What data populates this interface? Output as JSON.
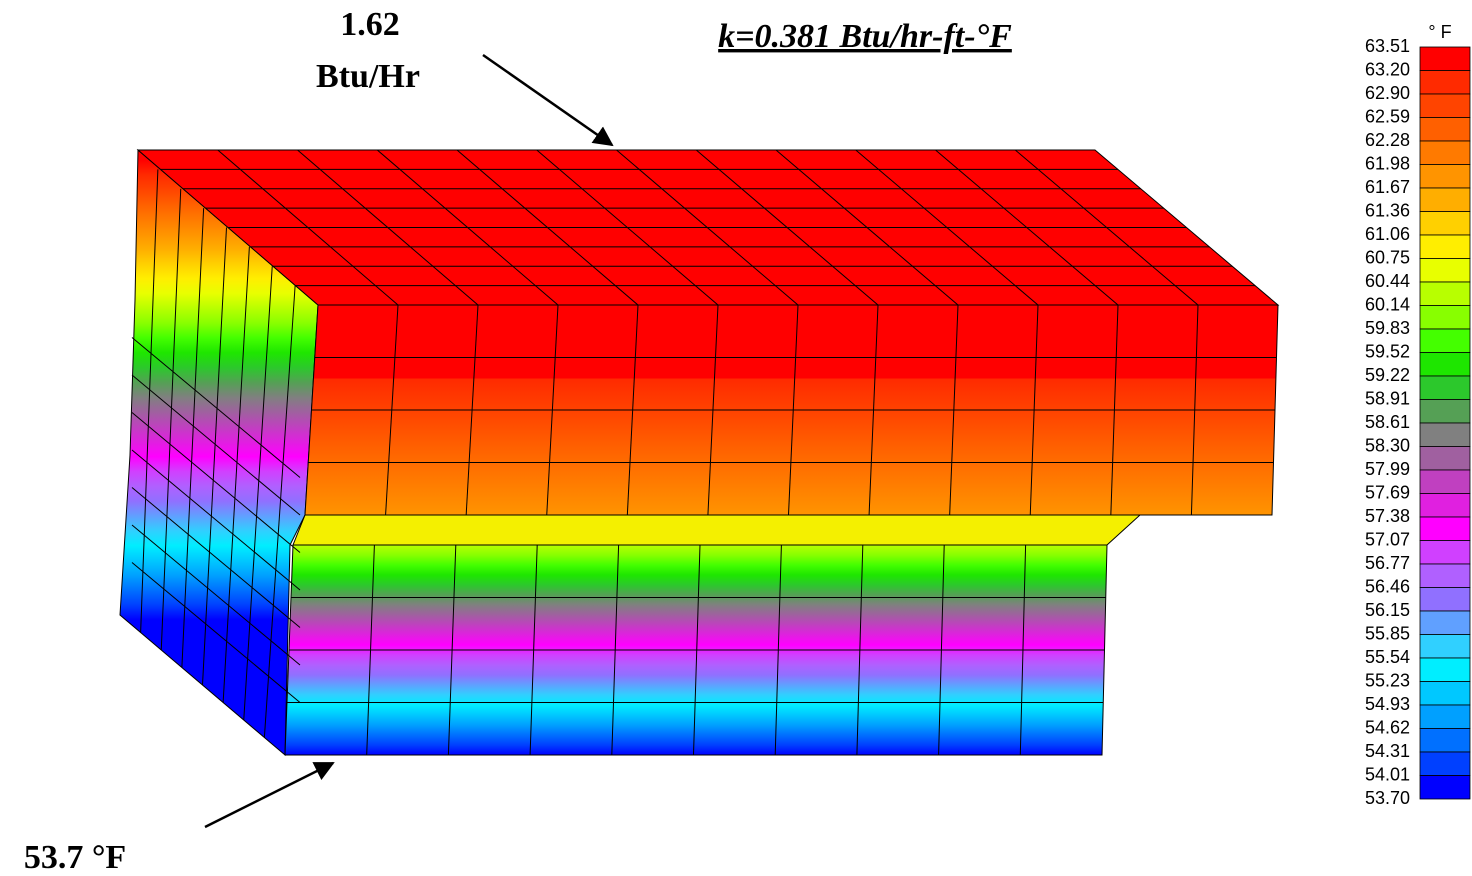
{
  "annotations": {
    "heat_flow_value": "1.62",
    "heat_flow_unit": "Btu/Hr",
    "conductivity": "k=0.381 Btu/hr-ft-°F",
    "base_temperature": "53.7 °F"
  },
  "legend": {
    "unit": "° F",
    "labels": [
      "63.51",
      "63.20",
      "62.90",
      "62.59",
      "62.28",
      "61.98",
      "61.67",
      "61.36",
      "61.06",
      "60.75",
      "60.44",
      "60.14",
      "59.83",
      "59.52",
      "59.22",
      "58.91",
      "58.61",
      "58.30",
      "57.99",
      "57.69",
      "57.38",
      "57.07",
      "56.77",
      "56.46",
      "56.15",
      "55.85",
      "55.54",
      "55.23",
      "54.93",
      "54.62",
      "54.31",
      "54.01",
      "53.70"
    ],
    "colors": [
      "#ff0000",
      "#ff2a00",
      "#ff4400",
      "#ff6000",
      "#ff7a00",
      "#ff9400",
      "#ffae00",
      "#ffd000",
      "#ffee00",
      "#e8ff00",
      "#b8ff00",
      "#88ff00",
      "#44ff00",
      "#1ee600",
      "#2cc82c",
      "#55a055",
      "#808080",
      "#a060a0",
      "#c040c0",
      "#e020e0",
      "#ff00ff",
      "#d040ff",
      "#b060ff",
      "#9070ff",
      "#60a0ff",
      "#30d0ff",
      "#00eeff",
      "#00c8ff",
      "#00a0ff",
      "#0070ff",
      "#0040ff",
      "#0000ff"
    ]
  }
}
